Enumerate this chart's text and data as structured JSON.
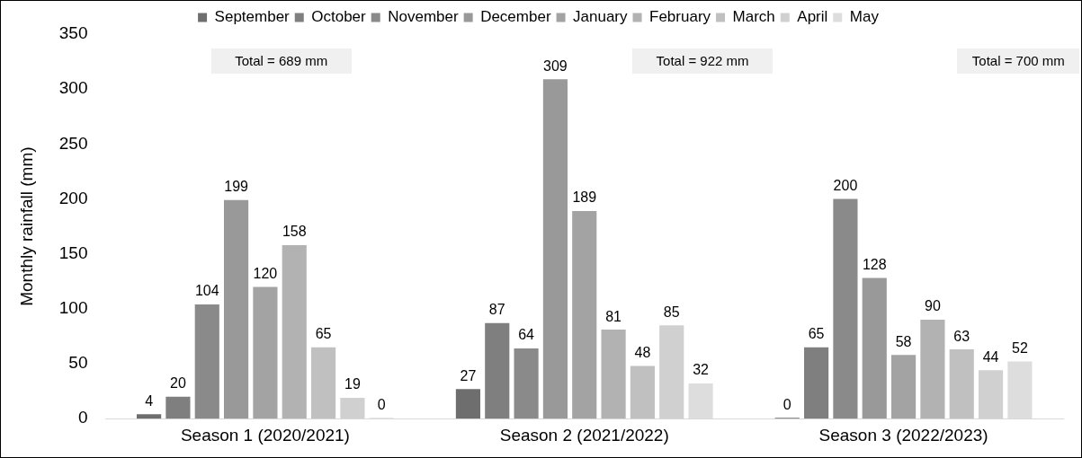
{
  "chart_data": {
    "type": "bar",
    "ylabel": "Monthly rainfall (mm)",
    "categories": [
      "Season 1 (2020/2021)",
      "Season 2 (2021/2022)",
      "Season 3 (2022/2023)"
    ],
    "series": [
      {
        "name": "September",
        "color": "#6e6e6e",
        "values": [
          4,
          27,
          0
        ]
      },
      {
        "name": "October",
        "color": "#7f7f7f",
        "values": [
          20,
          87,
          65
        ]
      },
      {
        "name": "November",
        "color": "#8a8a8a",
        "values": [
          104,
          64,
          200
        ]
      },
      {
        "name": "December",
        "color": "#999999",
        "values": [
          199,
          309,
          128
        ]
      },
      {
        "name": "January",
        "color": "#a3a3a3",
        "values": [
          120,
          189,
          58
        ]
      },
      {
        "name": "February",
        "color": "#b2b2b2",
        "values": [
          158,
          81,
          90
        ]
      },
      {
        "name": "March",
        "color": "#c0c0c0",
        "values": [
          65,
          48,
          63
        ]
      },
      {
        "name": "April",
        "color": "#d0d0d0",
        "values": [
          19,
          85,
          44
        ]
      },
      {
        "name": "May",
        "color": "#dddddd",
        "values": [
          0,
          32,
          52
        ]
      }
    ],
    "ylim": [
      0,
      350
    ],
    "yticks": [
      0,
      50,
      100,
      150,
      200,
      250,
      300,
      350
    ],
    "grid": false,
    "legend": "top",
    "data_labels": true,
    "annotations": [
      "Total = 689 mm",
      "Total = 922 mm",
      "Total = 700 mm"
    ]
  }
}
